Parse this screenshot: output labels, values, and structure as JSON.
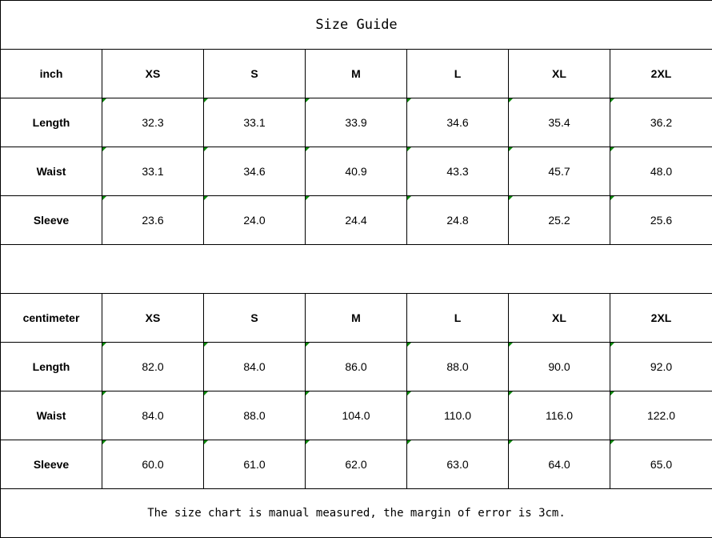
{
  "title": "Size Guide",
  "colors": {
    "comment_marker": "#0a8a0a",
    "border": "#000000"
  },
  "tables": [
    {
      "unit": "inch",
      "sizes": [
        "XS",
        "S",
        "M",
        "L",
        "XL",
        "2XL"
      ],
      "rows": [
        {
          "label": "Length",
          "values": [
            "32.3",
            "33.1",
            "33.9",
            "34.6",
            "35.4",
            "36.2"
          ]
        },
        {
          "label": "Waist",
          "values": [
            "33.1",
            "34.6",
            "40.9",
            "43.3",
            "45.7",
            "48.0"
          ]
        },
        {
          "label": "Sleeve",
          "values": [
            "23.6",
            "24.0",
            "24.4",
            "24.8",
            "25.2",
            "25.6"
          ]
        }
      ]
    },
    {
      "unit": "centimeter",
      "sizes": [
        "XS",
        "S",
        "M",
        "L",
        "XL",
        "2XL"
      ],
      "rows": [
        {
          "label": "Length",
          "values": [
            "82.0",
            "84.0",
            "86.0",
            "88.0",
            "90.0",
            "92.0"
          ]
        },
        {
          "label": "Waist",
          "values": [
            "84.0",
            "88.0",
            "104.0",
            "110.0",
            "116.0",
            "122.0"
          ]
        },
        {
          "label": "Sleeve",
          "values": [
            "60.0",
            "61.0",
            "62.0",
            "63.0",
            "64.0",
            "65.0"
          ]
        }
      ]
    }
  ],
  "note": "The size chart is manual measured, the margin of error is 3cm."
}
